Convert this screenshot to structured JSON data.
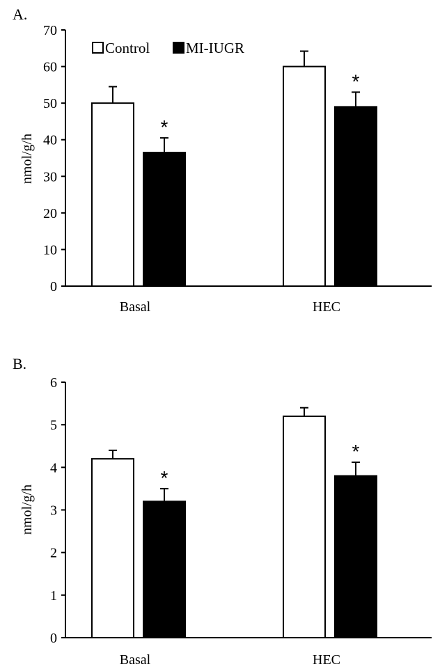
{
  "chart_data": [
    {
      "type": "bar",
      "panel_label": "A.",
      "categories": [
        "Basal",
        "HEC"
      ],
      "series": [
        {
          "name": "Control",
          "values": [
            50,
            60
          ],
          "errors": [
            4.5,
            4.2
          ],
          "color": "#ffffff"
        },
        {
          "name": "MI-IUGR",
          "values": [
            36.5,
            49
          ],
          "errors": [
            4,
            4
          ],
          "color": "#000000"
        }
      ],
      "significance": [
        [
          "",
          "*"
        ],
        [
          "",
          "*"
        ]
      ],
      "xlabel": "",
      "ylabel": "nmol/g/h",
      "ylim": [
        0,
        70
      ],
      "yticks": [
        "0",
        "10",
        "20",
        "30",
        "40",
        "50",
        "60",
        "70"
      ],
      "legend": {
        "placement": "top-left",
        "items": [
          "Control",
          "MI-IUGR"
        ]
      },
      "grid": false
    },
    {
      "type": "bar",
      "panel_label": "B.",
      "categories": [
        "Basal",
        "HEC"
      ],
      "series": [
        {
          "name": "Control",
          "values": [
            4.2,
            5.2
          ],
          "errors": [
            0.2,
            0.2
          ],
          "color": "#ffffff"
        },
        {
          "name": "MI-IUGR",
          "values": [
            3.2,
            3.8
          ],
          "errors": [
            0.3,
            0.32
          ],
          "color": "#000000"
        }
      ],
      "significance": [
        [
          "",
          "*"
        ],
        [
          "",
          "*"
        ]
      ],
      "xlabel": "",
      "ylabel": "nmol/g/h",
      "ylim": [
        0,
        6
      ],
      "yticks": [
        "0",
        "1",
        "2",
        "3",
        "4",
        "5",
        "6"
      ],
      "legend": null,
      "grid": false
    }
  ]
}
